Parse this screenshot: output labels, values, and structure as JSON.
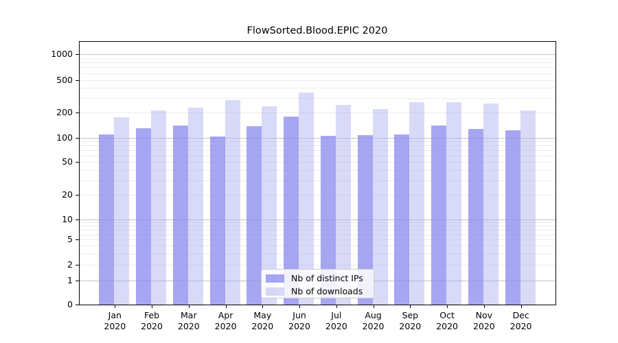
{
  "title": "FlowSorted.Blood.EPIC 2020",
  "chart_data": {
    "type": "bar",
    "title": "FlowSorted.Blood.EPIC 2020",
    "categories": [
      "Jan",
      "Feb",
      "Mar",
      "Apr",
      "May",
      "Jun",
      "Jul",
      "Aug",
      "Sep",
      "Oct",
      "Nov",
      "Dec"
    ],
    "year_label": "2020",
    "series": [
      {
        "name": "Nb of distinct IPs",
        "values": [
          110,
          129,
          141,
          103,
          136,
          178,
          105,
          108,
          110,
          140,
          126,
          123
        ],
        "color": "rgba(136,136,238,0.75)"
      },
      {
        "name": "Nb of downloads",
        "values": [
          175,
          211,
          229,
          284,
          240,
          351,
          246,
          221,
          266,
          267,
          255,
          214
        ],
        "color": "rgba(170,170,240,0.45)"
      }
    ],
    "yscale": "symlog",
    "y_ticks": [
      0,
      1,
      2,
      5,
      10,
      20,
      50,
      100,
      200,
      500,
      1000
    ],
    "ylim": [
      0,
      1430
    ],
    "grid": true,
    "legend_position": "lower center"
  },
  "colors": {
    "major_grid": "#c2c2c2",
    "minor_grid": "#ececec",
    "spine": "#000000",
    "text": "#000000",
    "background": "#ffffff"
  }
}
